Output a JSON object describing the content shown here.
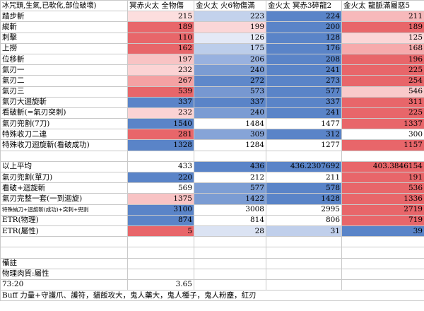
{
  "headers": [
    "冰咒頭,生氣,已軟化,部位破壞)",
    "冥赤火太 全物傷",
    "金火太 火6物傷滿",
    "金火太 冥赤3碎龍2",
    "金火太 龍脈滿屬惡5"
  ],
  "colors": {
    "red": "#e8666a",
    "blue": "#5a84c8",
    "white": "#ffffff"
  },
  "rows": [
    {
      "label": "踏步斬",
      "values": [
        "215",
        "223",
        "224",
        "211"
      ]
    },
    {
      "label": "縱斬",
      "values": [
        "189",
        "199",
        "200",
        "189"
      ]
    },
    {
      "label": "刺擊",
      "values": [
        "110",
        "126",
        "128",
        "125"
      ]
    },
    {
      "label": "上撈",
      "values": [
        "162",
        "175",
        "176",
        "168"
      ]
    },
    {
      "label": "位移斬",
      "values": [
        "197",
        "206",
        "208",
        "196"
      ]
    },
    {
      "label": "氣刃一",
      "values": [
        "232",
        "240",
        "241",
        "225"
      ]
    },
    {
      "label": "氣刃二",
      "values": [
        "267",
        "272",
        "273",
        "254"
      ]
    },
    {
      "label": "氣刃三",
      "values": [
        "539",
        "573",
        "577",
        "546"
      ]
    },
    {
      "label": "氣刃大迴旋斬",
      "values": [
        "337",
        "337",
        "337",
        "311"
      ]
    },
    {
      "label": "看破斬(=氣刃突刺)",
      "values": [
        "232",
        "240",
        "241",
        "225"
      ]
    },
    {
      "label": "氣刃兜割(7刀)",
      "values": [
        "1540",
        "1484",
        "1477",
        "1337"
      ]
    },
    {
      "label": "特殊收刀二連",
      "values": [
        "281",
        "309",
        "312",
        "300"
      ]
    },
    {
      "label": "特殊收刀迴旋斬(看破成功)",
      "values": [
        "1328",
        "1284",
        "1277",
        "1157"
      ]
    },
    {
      "label": "",
      "values": [
        "",
        "",
        "",
        ""
      ]
    },
    {
      "label": "以上平均",
      "values": [
        "433",
        "436",
        "436.2307692",
        "403.3846154"
      ]
    },
    {
      "label": "氣刃兜割(單刀)",
      "values": [
        "220",
        "212",
        "211",
        "191"
      ]
    },
    {
      "label": "看破+迴旋斬",
      "values": [
        "569",
        "577",
        "578",
        "536"
      ]
    },
    {
      "label": "氣刃完整一套(一到迴旋)",
      "values": [
        "1375",
        "1422",
        "1428",
        "1336"
      ]
    },
    {
      "label": "特殊納刀+迴旋斬(成功)+突刺+兜割",
      "values": [
        "3100",
        "3008",
        "2995",
        "2719"
      ]
    },
    {
      "label": "ETR(物理)",
      "values": [
        "874",
        "814",
        "806",
        "719"
      ]
    },
    {
      "label": "ETR(屬性)",
      "values": [
        "5",
        "28",
        "31",
        "39"
      ]
    },
    {
      "label": "",
      "values": [
        "",
        "",
        "",
        ""
      ]
    },
    {
      "label": "",
      "values": [
        "",
        "",
        "",
        ""
      ]
    },
    {
      "label": "備註",
      "values": [
        "",
        "",
        "",
        ""
      ]
    },
    {
      "label": "物理肉質:屬性",
      "values": [
        "",
        "",
        "",
        ""
      ]
    },
    {
      "label": "73:20",
      "values": [
        "3.65",
        "",
        "",
        ""
      ]
    }
  ],
  "footer": "Buff 力量+守護爪、護符，貓飯攻大，鬼人藥大，鬼人種子，鬼人粉塵，紅刃",
  "cell_fill": [
    [
      "#fcdede",
      "#c3d2ec",
      "#5a84c8",
      "#f7b9bb"
    ],
    [
      "#e8666a",
      "#fbd6d7",
      "#5a84c8",
      "#e8666a"
    ],
    [
      "#e8666a",
      "#e4e9f6",
      "#5a84c8",
      "#fbd6d7"
    ],
    [
      "#e8666a",
      "#bccdea",
      "#5a84c8",
      "#f6aaac"
    ],
    [
      "#f8c3c4",
      "#98b1df",
      "#5a84c8",
      "#e8666a"
    ],
    [
      "#fbd3d4",
      "#7b9cd3",
      "#5a84c8",
      "#e8666a"
    ],
    [
      "#f4a1a3",
      "#5f88ca",
      "#5a84c8",
      "#e8666a"
    ],
    [
      "#e8666a",
      "#7798d1",
      "#5a84c8",
      "#f9cacb"
    ],
    [
      "#5a84c8",
      "#5a84c8",
      "#5a84c8",
      "#e8666a"
    ],
    [
      "#fbd3d4",
      "#7b9cd3",
      "#5a84c8",
      "#e8666a"
    ],
    [
      "#5a84c8",
      "#ffffff",
      "#ffffff",
      "#e8666a"
    ],
    [
      "#e8666a",
      "#86a4d7",
      "#5a84c8",
      "#ffffff"
    ],
    [
      "#5a84c8",
      "#ffffff",
      "#ffffff",
      "#e8666a"
    ],
    [
      "#ffffff",
      "#ffffff",
      "#ffffff",
      "#ffffff"
    ],
    [
      "#ffffff",
      "#5a84c8",
      "#5a84c8",
      "#e8666a"
    ],
    [
      "#5a84c8",
      "#ffffff",
      "#ffffff",
      "#e8666a"
    ],
    [
      "#ffffff",
      "#7d9ed4",
      "#5a84c8",
      "#e8666a"
    ],
    [
      "#f8c3c4",
      "#7b9cd3",
      "#5a84c8",
      "#e8666a"
    ],
    [
      "#5a84c8",
      "#ffffff",
      "#ffffff",
      "#e8666a"
    ],
    [
      "#5a84c8",
      "#ffffff",
      "#ffffff",
      "#e8666a"
    ],
    [
      "#e8666a",
      "#dbe3f3",
      "#c0cfeb",
      "#5a84c8"
    ]
  ]
}
